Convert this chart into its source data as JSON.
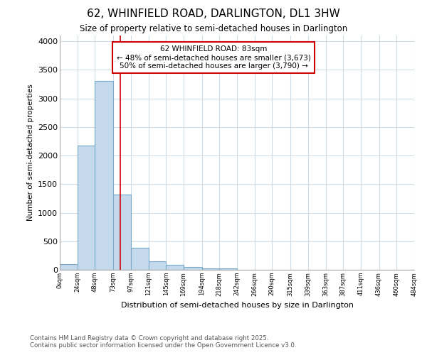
{
  "title1": "62, WHINFIELD ROAD, DARLINGTON, DL1 3HW",
  "title2": "Size of property relative to semi-detached houses in Darlington",
  "xlabel": "Distribution of semi-detached houses by size in Darlington",
  "ylabel": "Number of semi-detached properties",
  "annotation_title": "62 WHINFIELD ROAD: 83sqm",
  "annotation_line1": "← 48% of semi-detached houses are smaller (3,673)",
  "annotation_line2": "50% of semi-detached houses are larger (3,790) →",
  "footer1": "Contains HM Land Registry data © Crown copyright and database right 2025.",
  "footer2": "Contains public sector information licensed under the Open Government Licence v3.0.",
  "bin_edges": [
    0,
    24,
    48,
    73,
    97,
    121,
    145,
    169,
    194,
    218,
    242,
    266,
    290,
    315,
    339,
    363,
    387,
    411,
    436,
    460,
    484
  ],
  "bin_labels": [
    "0sqm",
    "24sqm",
    "48sqm",
    "73sqm",
    "97sqm",
    "121sqm",
    "145sqm",
    "169sqm",
    "194sqm",
    "218sqm",
    "242sqm",
    "266sqm",
    "290sqm",
    "315sqm",
    "339sqm",
    "363sqm",
    "387sqm",
    "411sqm",
    "436sqm",
    "460sqm",
    "484sqm"
  ],
  "bar_heights": [
    100,
    2180,
    3300,
    1320,
    380,
    155,
    85,
    55,
    25,
    20,
    5,
    2,
    0,
    0,
    0,
    0,
    0,
    0,
    0,
    0
  ],
  "bar_color": "#c5d9ec",
  "bar_edge_color": "#7aaac8",
  "property_size": 83,
  "vline_color": "#cc0000",
  "ylim": [
    0,
    4100
  ],
  "yticks": [
    0,
    500,
    1000,
    1500,
    2000,
    2500,
    3000,
    3500,
    4000
  ],
  "annotation_box_color": "#ffffff",
  "annotation_box_edge": "#cc0000",
  "bg_color": "#ffffff",
  "plot_bg_color": "#ffffff",
  "grid_color": "#d0dce8"
}
